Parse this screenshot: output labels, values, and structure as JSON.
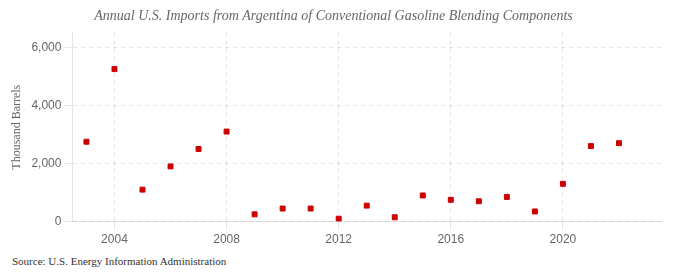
{
  "chart_data": {
    "type": "scatter",
    "title": "Annual U.S. Imports from Argentina of Conventional Gasoline Blending Components",
    "ylabel": "Thousand Barrels",
    "source": "Source: U.S. Energy Information Administration",
    "x": [
      2003,
      2004,
      2005,
      2006,
      2007,
      2008,
      2009,
      2010,
      2011,
      2012,
      2013,
      2014,
      2015,
      2016,
      2017,
      2018,
      2019,
      2020,
      2021,
      2022
    ],
    "values": [
      2750,
      5250,
      1100,
      1900,
      2500,
      3100,
      250,
      450,
      450,
      100,
      550,
      150,
      900,
      750,
      700,
      850,
      350,
      1300,
      2600,
      2700
    ],
    "color": "#cc0000",
    "marker": "square",
    "xlim": [
      2002.5,
      2023.5
    ],
    "xticks": [
      2004,
      2008,
      2012,
      2016,
      2020
    ],
    "ylim": [
      0,
      6500
    ],
    "yticks": [
      0,
      {
        "value": 2000,
        "label": "2,000"
      },
      {
        "value": 4000,
        "label": "4,000"
      },
      {
        "value": 6000,
        "label": "6,000"
      }
    ],
    "grid": true
  }
}
